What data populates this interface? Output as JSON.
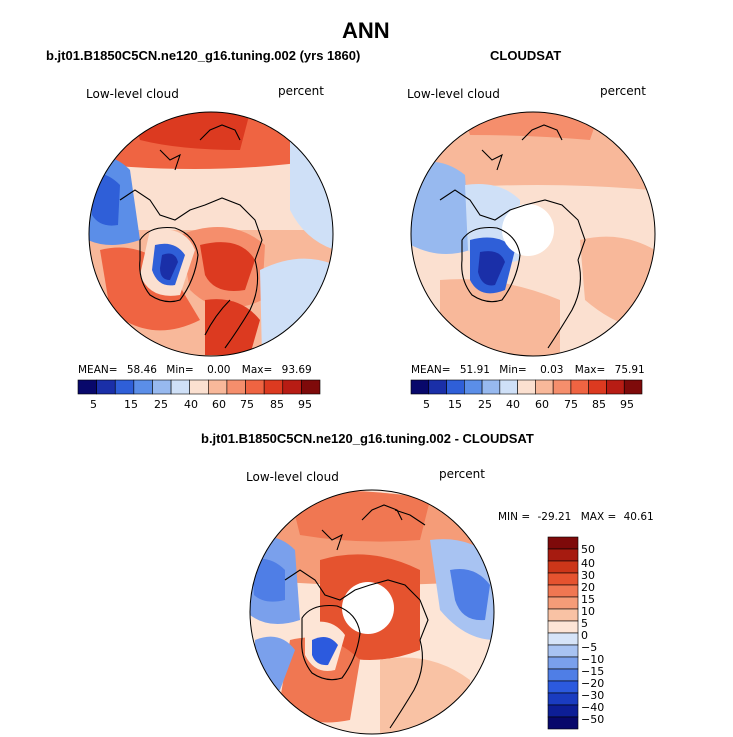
{
  "figure": {
    "title": "ANN",
    "diff_title": "b.jt01.B1850C5CN.ne120_g16.tuning.002 - CLOUDSAT"
  },
  "colors": {
    "palette_abs": [
      "#08086b",
      "#1a2fa8",
      "#2f5fd8",
      "#5b8ee8",
      "#97b9ef",
      "#cfe0f7",
      "#fbe0d0",
      "#f8b89a",
      "#f58e6c",
      "#ef6442",
      "#dc3a20",
      "#b71c14",
      "#7e0a0a"
    ],
    "palette_diff": [
      "#08086b",
      "#0d1e96",
      "#1a3cc0",
      "#2c5ade",
      "#4f7ee6",
      "#7aa0ec",
      "#a8c3f2",
      "#d6e4f8",
      "#fde5d6",
      "#f9c2a4",
      "#f59c78",
      "#f07752",
      "#e5532f",
      "#cc3619",
      "#a61b10",
      "#7e0a0a"
    ]
  },
  "chart_data": [
    {
      "type": "heatmap",
      "projection": "north polar stereographic",
      "title": "b.jt01.B1850C5CN.ne120_g16.tuning.002 (yrs 1860)",
      "left_label": "Low-level cloud",
      "right_label": "percent",
      "stats": {
        "mean_label": "MEAN=",
        "mean": "58.46",
        "min_label": "Min=",
        "min": "0.00",
        "max_label": "Max=",
        "max": "93.69"
      },
      "colorbar_ticks": [
        "5",
        "15",
        "25",
        "40",
        "60",
        "75",
        "85",
        "95"
      ]
    },
    {
      "type": "heatmap",
      "projection": "north polar stereographic",
      "title": "CLOUDSAT",
      "left_label": "Low-level cloud",
      "right_label": "percent",
      "stats": {
        "mean_label": "MEAN=",
        "mean": "51.91",
        "min_label": "Min=",
        "min": "0.03",
        "max_label": "Max=",
        "max": "75.91"
      },
      "colorbar_ticks": [
        "5",
        "15",
        "25",
        "40",
        "60",
        "75",
        "85",
        "95"
      ]
    },
    {
      "type": "heatmap",
      "projection": "north polar stereographic",
      "title": "b.jt01.B1850C5CN.ne120_g16.tuning.002 - CLOUDSAT",
      "left_label": "Low-level cloud",
      "right_label": "percent",
      "stats": {
        "min_label": "MIN =",
        "min": "-29.21",
        "max_label": "MAX =",
        "max": "40.61"
      },
      "colorbar_ticks": [
        "50",
        "40",
        "30",
        "20",
        "15",
        "10",
        "5",
        "0",
        "−5",
        "−10",
        "−15",
        "−20",
        "−30",
        "−40",
        "−50"
      ]
    }
  ]
}
